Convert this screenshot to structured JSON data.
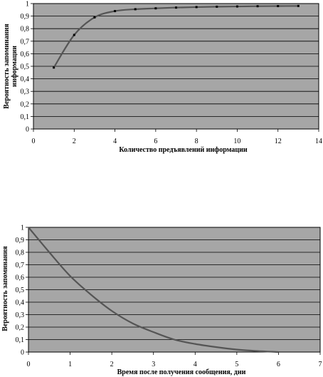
{
  "chart_data": [
    {
      "type": "line",
      "xlabel": "Количество предъявлений информации",
      "ylabel": "Вероятность запоминания информации",
      "ylabel_lines": [
        "Вероятность запоминания",
        "информации"
      ],
      "xlim": [
        0,
        14
      ],
      "ylim": [
        0,
        1
      ],
      "x_ticks": [
        "0",
        "2",
        "4",
        "6",
        "8",
        "10",
        "12",
        "14"
      ],
      "y_ticks": [
        "0",
        "0,1",
        "0,2",
        "0,3",
        "0,4",
        "0,5",
        "0,6",
        "0,7",
        "0,8",
        "0,9",
        "1"
      ],
      "grid": true,
      "markers": true,
      "plot_background": "#a6a6a6",
      "line_color": "#555555",
      "series": [
        {
          "x": [
            1,
            2,
            3,
            4,
            5,
            6,
            7,
            8,
            9,
            10,
            11,
            12,
            13
          ],
          "y": [
            0.49,
            0.75,
            0.89,
            0.94,
            0.955,
            0.962,
            0.968,
            0.972,
            0.975,
            0.977,
            0.979,
            0.98,
            0.981
          ]
        }
      ]
    },
    {
      "type": "line",
      "xlabel": "Время после получения  сообщения, дни",
      "ylabel": "Вероятность запоминания",
      "xlim": [
        0,
        7
      ],
      "ylim": [
        0,
        1
      ],
      "x_ticks": [
        "0",
        "1",
        "2",
        "3",
        "4",
        "5",
        "6",
        "7"
      ],
      "y_ticks": [
        "0",
        "0,1",
        "0,2",
        "0,3",
        "0,4",
        "0,5",
        "0,6",
        "0,7",
        "0,8",
        "0,9",
        "1"
      ],
      "grid": true,
      "markers": false,
      "plot_background": "#a6a6a6",
      "line_color": "#555555",
      "series": [
        {
          "x": [
            0,
            0.5,
            1,
            1.5,
            2,
            2.5,
            3,
            3.5,
            4,
            4.5,
            5,
            5.5,
            6
          ],
          "y": [
            1,
            0.8,
            0.61,
            0.46,
            0.33,
            0.23,
            0.16,
            0.1,
            0.065,
            0.04,
            0.02,
            0.008,
            0
          ]
        }
      ]
    }
  ]
}
